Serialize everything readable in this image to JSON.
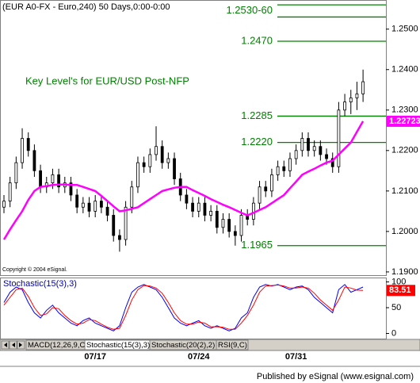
{
  "chart_data": [
    {
      "type": "candlestick",
      "title": "(EUR A0-FX - Euro,240) 50 Days,0:00-0:00",
      "annotation": "Key Level's for EUR/USD Post-NFP",
      "note": "Copyright © 2004 eSignal.",
      "categories": [
        null,
        null,
        null,
        null,
        null,
        null,
        null,
        null,
        null,
        null,
        null,
        null,
        null,
        null,
        null,
        "07/17",
        null,
        null,
        null,
        null,
        null,
        null,
        null,
        null,
        null,
        null,
        null,
        null,
        null,
        null,
        null,
        null,
        "07/24",
        null,
        null,
        null,
        null,
        null,
        null,
        null,
        null,
        null,
        null,
        null,
        null,
        null,
        null,
        null,
        "07/31",
        null,
        null,
        null,
        null,
        null,
        null,
        null,
        null,
        null,
        null,
        null
      ],
      "open": [
        1.206,
        1.2075,
        1.212,
        1.217,
        1.223,
        1.22,
        1.215,
        1.211,
        1.212,
        1.214,
        1.211,
        1.212,
        1.209,
        1.206,
        1.207,
        1.205,
        1.2075,
        1.206,
        1.204,
        1.199,
        1.198,
        1.206,
        1.211,
        1.217,
        1.216,
        1.219,
        1.221,
        1.217,
        1.218,
        1.213,
        1.209,
        1.207,
        1.205,
        1.207,
        1.204,
        1.205,
        1.201,
        1.203,
        1.2,
        1.199,
        1.204,
        1.203,
        1.207,
        1.211,
        1.21,
        1.214,
        1.216,
        1.215,
        1.218,
        1.22,
        1.223,
        1.22,
        1.221,
        1.219,
        1.218,
        1.216,
        1.23,
        1.232,
        1.233,
        1.234
      ],
      "high": [
        1.209,
        1.2135,
        1.2185,
        1.2255,
        1.2245,
        1.2215,
        1.2165,
        1.2135,
        1.2155,
        1.2155,
        1.2135,
        1.2135,
        1.2105,
        1.2085,
        1.2085,
        1.209,
        1.209,
        1.2075,
        1.2055,
        1.2005,
        1.2075,
        1.2125,
        1.2185,
        1.2185,
        1.2205,
        1.226,
        1.2225,
        1.2195,
        1.2195,
        1.2145,
        1.2105,
        1.2085,
        1.2085,
        1.2085,
        1.2065,
        1.2065,
        1.2045,
        1.2045,
        1.2015,
        1.2055,
        1.2055,
        1.2085,
        1.2125,
        1.2125,
        1.2155,
        1.2175,
        1.2175,
        1.2195,
        1.2215,
        1.2245,
        1.2245,
        1.2225,
        1.2225,
        1.2205,
        1.2195,
        1.232,
        1.234,
        1.235,
        1.237,
        1.24
      ],
      "low": [
        1.2045,
        1.206,
        1.2105,
        1.2155,
        1.2185,
        1.2135,
        1.2095,
        1.2095,
        1.2105,
        1.2095,
        1.2095,
        1.2075,
        1.2045,
        1.2045,
        1.2035,
        1.2035,
        1.2045,
        1.2025,
        1.1975,
        1.195,
        1.1965,
        1.2045,
        1.2095,
        1.2145,
        1.2145,
        1.2175,
        1.2155,
        1.2155,
        1.2115,
        1.2075,
        1.2055,
        1.2035,
        1.2035,
        1.2025,
        1.2025,
        1.1995,
        1.1995,
        1.1985,
        1.1965,
        1.1975,
        1.2015,
        1.2015,
        1.2055,
        1.2085,
        1.2085,
        1.2125,
        1.2135,
        1.2135,
        1.2165,
        1.2185,
        1.2185,
        1.2185,
        1.2175,
        1.2165,
        1.2145,
        1.2145,
        1.2285,
        1.229,
        1.23,
        1.232
      ],
      "close": [
        1.2075,
        1.212,
        1.217,
        1.223,
        1.22,
        1.215,
        1.211,
        1.212,
        1.214,
        1.211,
        1.212,
        1.209,
        1.206,
        1.207,
        1.205,
        1.2075,
        1.206,
        1.204,
        1.199,
        1.198,
        1.206,
        1.211,
        1.217,
        1.216,
        1.219,
        1.221,
        1.217,
        1.218,
        1.213,
        1.209,
        1.207,
        1.205,
        1.207,
        1.204,
        1.205,
        1.201,
        1.203,
        1.2,
        1.199,
        1.204,
        1.203,
        1.207,
        1.211,
        1.21,
        1.214,
        1.216,
        1.215,
        1.218,
        1.22,
        1.223,
        1.22,
        1.221,
        1.219,
        1.218,
        1.216,
        1.23,
        1.232,
        1.233,
        1.234,
        1.237
      ],
      "ma": {
        "color": "#ff00ff",
        "values": [
          1.198,
          1.2005,
          1.2028,
          1.205,
          1.2078,
          1.21,
          1.211,
          1.2112,
          1.2115,
          1.2116,
          1.2116,
          1.2115,
          1.2115,
          1.211,
          1.2105,
          1.21,
          1.2088,
          1.2075,
          1.2062,
          1.205,
          1.2052,
          1.2056,
          1.206,
          1.207,
          1.208,
          1.209,
          1.21,
          1.2104,
          1.2108,
          1.211,
          1.211,
          1.2102,
          1.2095,
          1.2088,
          1.208,
          1.2073,
          1.2066,
          1.206,
          1.2053,
          1.2046,
          1.204,
          1.2046,
          1.2053,
          1.206,
          1.207,
          1.208,
          1.209,
          1.2107,
          1.2123,
          1.214,
          1.2148,
          1.2155,
          1.2163,
          1.217,
          1.2175,
          1.219,
          1.2205,
          1.222,
          1.2246,
          1.22723
        ]
      },
      "levels": [
        {
          "label": "1.2530-60",
          "values": [
            1.253,
            1.256
          ]
        },
        {
          "label": "1.2470",
          "values": [
            1.247
          ]
        },
        {
          "label": "1.2285",
          "values": [
            1.2285
          ]
        },
        {
          "label": "1.2220",
          "values": [
            1.222
          ]
        },
        {
          "label": "1.1965",
          "values": [
            1.1965
          ]
        }
      ],
      "level_color": "#008000",
      "ylim": [
        1.1892,
        1.257
      ],
      "yticks": [
        {
          "value": 1.25,
          "label": "1.2500"
        },
        {
          "value": 1.24,
          "label": "1.2400"
        },
        {
          "value": 1.23,
          "label": "1.2300"
        },
        {
          "value": 1.22,
          "label": "1.2200"
        },
        {
          "value": 1.21,
          "label": "1.2100"
        },
        {
          "value": 1.2,
          "label": "1.2000"
        },
        {
          "value": 1.19,
          "label": "1.1900"
        }
      ]
    },
    {
      "type": "line",
      "title": "Stochastic(15(3),3)",
      "series": [
        {
          "color": "#0000ff",
          "values": [
            60,
            80,
            90,
            85,
            60,
            40,
            30,
            45,
            55,
            40,
            30,
            20,
            15,
            25,
            30,
            20,
            15,
            10,
            5,
            15,
            50,
            80,
            90,
            95,
            90,
            85,
            70,
            50,
            30,
            20,
            15,
            20,
            25,
            15,
            10,
            15,
            10,
            5,
            10,
            30,
            40,
            70,
            90,
            95,
            92,
            95,
            90,
            85,
            90,
            92,
            85,
            70,
            60,
            50,
            40,
            85,
            95,
            80,
            85,
            90
          ]
        },
        {
          "color": "#ff0000",
          "values": [
            55,
            70,
            85,
            88,
            72,
            50,
            35,
            38,
            50,
            48,
            35,
            25,
            18,
            20,
            27,
            25,
            18,
            12,
            8,
            10,
            35,
            65,
            85,
            93,
            92,
            88,
            78,
            60,
            40,
            25,
            18,
            18,
            22,
            20,
            13,
            13,
            12,
            8,
            8,
            20,
            35,
            55,
            80,
            92,
            93,
            94,
            92,
            88,
            88,
            90,
            88,
            78,
            65,
            55,
            45,
            65,
            90,
            88,
            84,
            83.51
          ]
        }
      ],
      "ylim": [
        -10,
        107
      ],
      "yticks": [
        100,
        50,
        0
      ]
    }
  ],
  "tabs": [
    "MACD(12,26,9,C)",
    "Stochastic(15(3),3)",
    "Stochastic(20(2),2)",
    "RSI(9,C)"
  ],
  "footer": "Published by eSignal (www.esignal.com)"
}
